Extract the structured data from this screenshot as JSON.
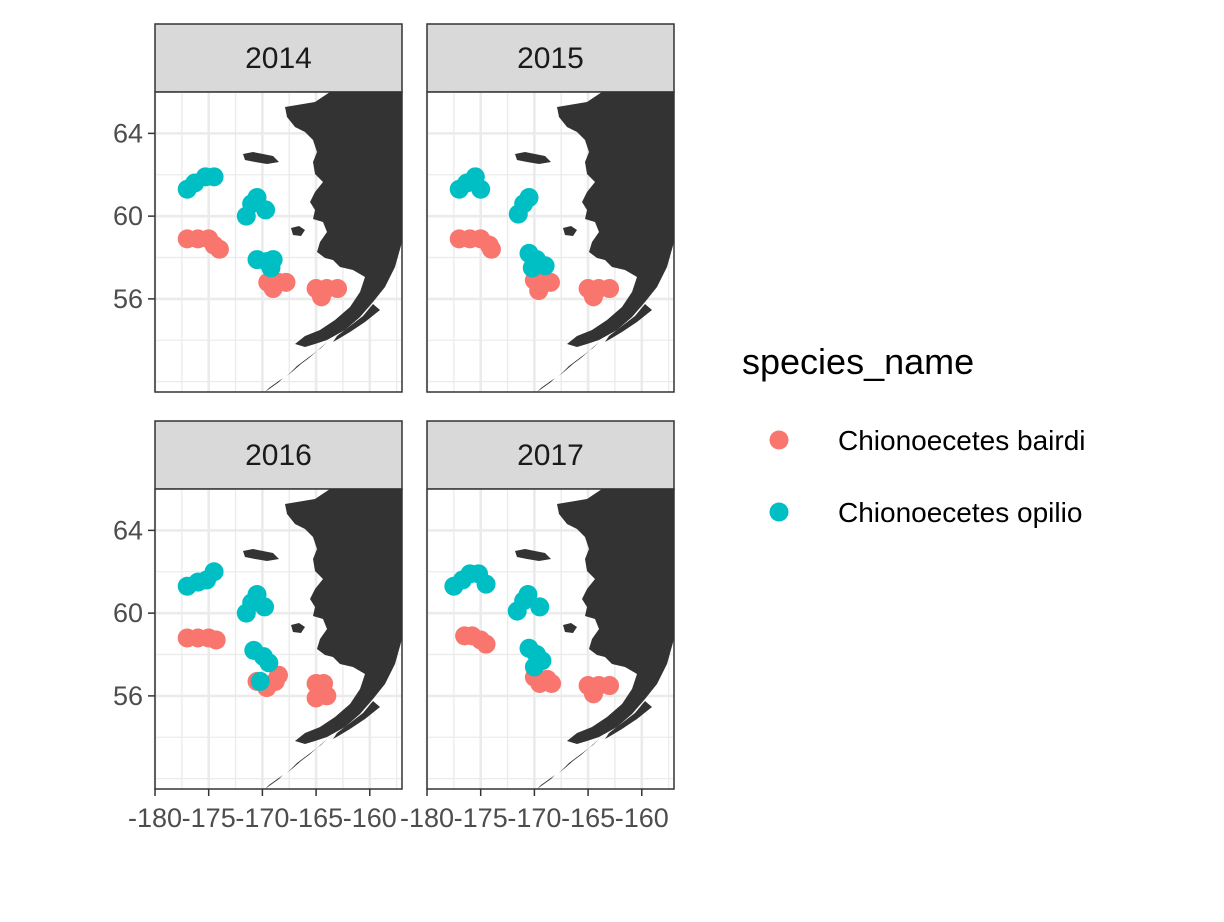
{
  "chart_data": {
    "type": "scatter",
    "facet_by": "year",
    "panels": [
      {
        "label": "2014",
        "series": [
          {
            "name": "Chionoecetes bairdi",
            "points": [
              [
                -177,
                58.9
              ],
              [
                -176,
                58.9
              ],
              [
                -175,
                58.9
              ],
              [
                -174.5,
                58.6
              ],
              [
                -174,
                58.4
              ],
              [
                -169.5,
                56.8
              ],
              [
                -168.5,
                56.8
              ],
              [
                -167.8,
                56.8
              ],
              [
                -169,
                56.5
              ],
              [
                -165,
                56.5
              ],
              [
                -164,
                56.5
              ],
              [
                -163,
                56.5
              ],
              [
                -164.5,
                56.1
              ]
            ]
          },
          {
            "name": "Chionoecetes opilio",
            "points": [
              [
                -177,
                61.3
              ],
              [
                -176.3,
                61.6
              ],
              [
                -175.3,
                61.9
              ],
              [
                -174.5,
                61.9
              ],
              [
                -171.5,
                60.0
              ],
              [
                -171,
                60.6
              ],
              [
                -170.5,
                60.9
              ],
              [
                -169.7,
                60.3
              ],
              [
                -170.5,
                57.9
              ],
              [
                -169.6,
                57.8
              ],
              [
                -169.2,
                57.5
              ],
              [
                -169,
                57.9
              ]
            ]
          }
        ]
      },
      {
        "label": "2015",
        "series": [
          {
            "name": "Chionoecetes bairdi",
            "points": [
              [
                -177,
                58.9
              ],
              [
                -176,
                58.9
              ],
              [
                -175,
                58.9
              ],
              [
                -174.2,
                58.6
              ],
              [
                -174,
                58.4
              ],
              [
                -170,
                56.9
              ],
              [
                -169.4,
                56.8
              ],
              [
                -168.5,
                56.8
              ],
              [
                -169.6,
                56.4
              ],
              [
                -165,
                56.5
              ],
              [
                -164,
                56.5
              ],
              [
                -163,
                56.5
              ],
              [
                -164.5,
                56.1
              ]
            ]
          },
          {
            "name": "Chionoecetes opilio",
            "points": [
              [
                -177,
                61.3
              ],
              [
                -176.3,
                61.6
              ],
              [
                -175.5,
                61.9
              ],
              [
                -175,
                61.3
              ],
              [
                -171.5,
                60.1
              ],
              [
                -171,
                60.6
              ],
              [
                -170.5,
                60.9
              ],
              [
                -170.5,
                58.2
              ],
              [
                -169.8,
                57.9
              ],
              [
                -169,
                57.6
              ],
              [
                -170.2,
                57.5
              ]
            ]
          }
        ]
      },
      {
        "label": "2016",
        "series": [
          {
            "name": "Chionoecetes bairdi",
            "points": [
              [
                -177,
                58.8
              ],
              [
                -176,
                58.8
              ],
              [
                -175,
                58.8
              ],
              [
                -174.3,
                58.7
              ],
              [
                -170.5,
                56.7
              ],
              [
                -169.6,
                56.4
              ],
              [
                -168.8,
                56.7
              ],
              [
                -168.5,
                57.0
              ],
              [
                -165,
                56.6
              ],
              [
                -164.3,
                56.6
              ],
              [
                -165,
                55.9
              ],
              [
                -164,
                56.0
              ]
            ]
          },
          {
            "name": "Chionoecetes opilio",
            "points": [
              [
                -177,
                61.3
              ],
              [
                -176,
                61.5
              ],
              [
                -175.2,
                61.6
              ],
              [
                -174.5,
                62.0
              ],
              [
                -171.5,
                60.0
              ],
              [
                -171,
                60.5
              ],
              [
                -170.5,
                60.9
              ],
              [
                -169.8,
                60.3
              ],
              [
                -170.8,
                58.2
              ],
              [
                -169.9,
                57.9
              ],
              [
                -169.4,
                57.6
              ],
              [
                -170.2,
                56.7
              ]
            ]
          }
        ]
      },
      {
        "label": "2017",
        "series": [
          {
            "name": "Chionoecetes bairdi",
            "points": [
              [
                -176.5,
                58.9
              ],
              [
                -175.8,
                58.9
              ],
              [
                -175,
                58.7
              ],
              [
                -174.5,
                58.5
              ],
              [
                -170,
                56.9
              ],
              [
                -169.5,
                56.6
              ],
              [
                -168.8,
                56.8
              ],
              [
                -168.4,
                56.6
              ],
              [
                -165,
                56.5
              ],
              [
                -164,
                56.5
              ],
              [
                -163,
                56.5
              ],
              [
                -164.5,
                56.1
              ]
            ]
          },
          {
            "name": "Chionoecetes opilio",
            "points": [
              [
                -177.5,
                61.3
              ],
              [
                -176.7,
                61.6
              ],
              [
                -176,
                61.9
              ],
              [
                -175.2,
                61.9
              ],
              [
                -174.5,
                61.4
              ],
              [
                -171.6,
                60.1
              ],
              [
                -171,
                60.6
              ],
              [
                -170.6,
                60.9
              ],
              [
                -169.5,
                60.3
              ],
              [
                -170.5,
                58.3
              ],
              [
                -169.8,
                58.0
              ],
              [
                -169.3,
                57.7
              ],
              [
                -170,
                57.4
              ]
            ]
          }
        ]
      }
    ],
    "xlim": [
      -180,
      -157
    ],
    "ylim": [
      51.5,
      66
    ],
    "x_ticks": [
      -180,
      -175,
      -170,
      -165,
      -160
    ],
    "x_tick_labels": [
      "-180",
      "-175",
      "-170",
      "-165",
      "-160"
    ],
    "y_ticks": [
      56,
      60,
      64
    ],
    "y_tick_labels": [
      "56",
      "60",
      "64"
    ],
    "xlabel": "",
    "ylabel": "",
    "legend": {
      "title": "species_name",
      "position": "right",
      "entries": [
        {
          "label": "Chionoecetes bairdi",
          "color": "#F8766D"
        },
        {
          "label": "Chionoecetes opilio",
          "color": "#00BFC4"
        }
      ]
    },
    "grid": true,
    "land_color": "#333333",
    "strip_color": "#d9d9d9",
    "panel_border_color": "#333333"
  }
}
